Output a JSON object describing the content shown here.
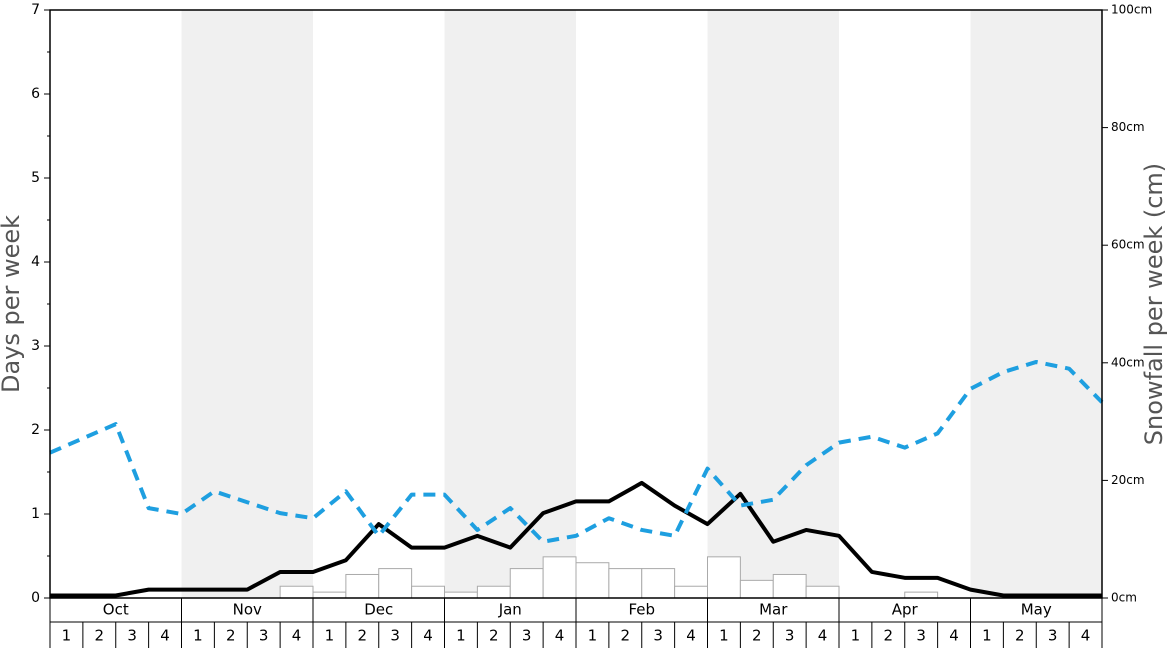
{
  "chart_data": {
    "type": "combo",
    "y_label": "Days per week",
    "y2_label": "Snowfall per week (cm)",
    "months": [
      "Oct",
      "Nov",
      "Dec",
      "Jan",
      "Feb",
      "Mar",
      "Apr",
      "May"
    ],
    "shaded_months": [
      1,
      3,
      5,
      7
    ],
    "shade_color": "#f0f0f0",
    "week_labels": [
      1,
      2,
      3,
      4
    ],
    "ylim": [
      0,
      7
    ],
    "yticks": [
      0,
      1,
      2,
      3,
      4,
      5,
      6,
      7
    ],
    "yminorticks": [
      0.5,
      1.5,
      2.5,
      3.5,
      4.5,
      5.5,
      6.5
    ],
    "y2lim": [
      0,
      100
    ],
    "y2ticks": [
      {
        "value": 0,
        "label": "0cm"
      },
      {
        "value": 20,
        "label": "20cm"
      },
      {
        "value": 40,
        "label": "40cm"
      },
      {
        "value": 60,
        "label": "60cm"
      },
      {
        "value": 80,
        "label": "80cm"
      },
      {
        "value": 100,
        "label": "100cm"
      }
    ],
    "bars": {
      "axis": "y2",
      "color": "#ffffff",
      "edge": "#aaaaaa",
      "values": [
        0,
        0,
        0,
        0,
        0,
        0,
        0,
        2,
        1,
        4,
        5,
        2,
        1,
        2,
        5,
        7,
        6,
        5,
        5,
        2,
        7,
        3,
        4,
        2,
        0,
        0,
        1,
        0,
        0,
        0,
        0,
        0
      ]
    },
    "series": [
      {
        "color": "#000000",
        "dashed": false,
        "values": [
          0.03,
          0.03,
          0.03,
          0.1,
          0.1,
          0.1,
          0.1,
          0.31,
          0.31,
          0.45,
          0.88,
          0.6,
          0.6,
          0.74,
          0.6,
          1.01,
          1.15,
          1.15,
          1.37,
          1.1,
          0.88,
          1.24,
          0.67,
          0.81,
          0.74,
          0.31,
          0.24,
          0.24,
          0.1,
          0.03,
          0.03,
          0.03,
          0.03
        ]
      },
      {
        "color": "#1e9fe0",
        "dashed": true,
        "values": [
          1.73,
          1.9,
          2.07,
          1.07,
          1.0,
          1.27,
          1.14,
          1.01,
          0.95,
          1.27,
          0.74,
          1.23,
          1.23,
          0.81,
          1.07,
          0.67,
          0.74,
          0.95,
          0.81,
          0.74,
          1.54,
          1.1,
          1.17,
          1.58,
          1.85,
          1.92,
          1.79,
          1.96,
          2.49,
          2.69,
          2.81,
          2.73,
          2.33
        ]
      }
    ]
  }
}
